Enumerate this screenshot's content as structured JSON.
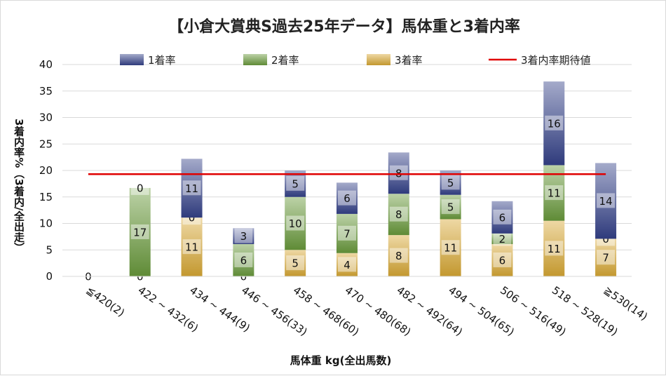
{
  "chart_data": {
    "type": "bar",
    "stacked": true,
    "title": "【小倉大賞典S過去25年データ】馬体重と3着内率",
    "xlabel": "馬体重 kg(全出馬数)",
    "ylabel": "3着内率%（3着内/全出走）",
    "ylim": [
      0,
      40
    ],
    "yticks": [
      0,
      5,
      10,
      15,
      20,
      25,
      30,
      35,
      40
    ],
    "grid": true,
    "legend_position": "top",
    "categories": [
      "≦420(2)",
      "422 ~ 432(6)",
      "434 ~ 444(9)",
      "446 ~ 456(33)",
      "458 ~ 468(60)",
      "470 ~ 480(68)",
      "482 ~ 492(64)",
      "494 ~ 504(65)",
      "506 ~ 516(49)",
      "518 ~ 528(19)",
      "≧530(14)"
    ],
    "series": [
      {
        "name": "3着率",
        "color": "#d9a934",
        "values": [
          0,
          0,
          11.1,
          0,
          5.0,
          4.4,
          7.8,
          10.8,
          6.1,
          10.5,
          7.1
        ],
        "labels": [
          "",
          "0",
          "11",
          "0",
          "5",
          "4",
          "8",
          "11",
          "6",
          "11",
          "7"
        ]
      },
      {
        "name": "2着率",
        "color": "#6a9a3c",
        "values": [
          0,
          16.7,
          0,
          6.1,
          10.0,
          7.4,
          7.8,
          4.6,
          2.0,
          10.5,
          0
        ],
        "labels": [
          "",
          "17",
          "0",
          "6",
          "10",
          "7",
          "8",
          "5",
          "2",
          "11",
          "0"
        ]
      },
      {
        "name": "1着率",
        "color": "#34418a",
        "values": [
          0,
          0,
          11.1,
          3.0,
          5.0,
          5.9,
          7.8,
          4.6,
          6.1,
          15.8,
          14.3
        ],
        "labels": [
          "",
          "0",
          "11",
          "3",
          "5",
          "6",
          "8",
          "5",
          "6",
          "16",
          "14"
        ]
      }
    ],
    "zero_label": "0",
    "reference_line": {
      "name": "3着内率期待値",
      "value": 19.3,
      "color": "#e00000"
    }
  }
}
